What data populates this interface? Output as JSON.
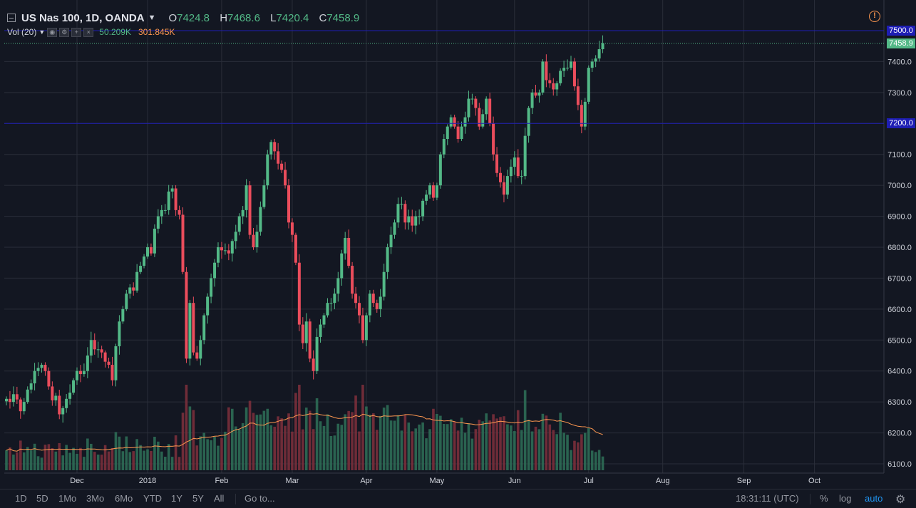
{
  "header": {
    "symbol": "US Nas 100, 1D, OANDA",
    "ohlc": [
      {
        "k": "O",
        "v": "7424.8"
      },
      {
        "k": "H",
        "v": "7468.6"
      },
      {
        "k": "L",
        "v": "7420.4"
      },
      {
        "k": "C",
        "v": "7458.9"
      }
    ]
  },
  "volume_indicator": {
    "label": "Vol (20)",
    "volume": "50.209K",
    "ma": "301.845K"
  },
  "price_labels": {
    "upper_line": "7500.0",
    "last": "7458.9",
    "lower_line": "7200.0"
  },
  "toolbar": {
    "timeframes": [
      "1D",
      "5D",
      "1Mo",
      "3Mo",
      "6Mo",
      "YTD",
      "1Y",
      "5Y",
      "All"
    ],
    "goto": "Go to...",
    "clock": "18:31:11 (UTC)",
    "percent": "%",
    "log": "log",
    "auto": "auto"
  },
  "colors": {
    "bg": "#131722",
    "grid": "#2a2e39",
    "up": "#53b987",
    "down": "#eb4d5c",
    "vol_ma": "#ff9850",
    "hline": "#1e1eb4",
    "text": "#d1d4dc"
  },
  "chart_data": {
    "type": "candlestick",
    "title": "US Nas 100, 1D, OANDA",
    "y_ticks": [
      6100,
      6200,
      6300,
      6400,
      6500,
      6600,
      6700,
      6800,
      6900,
      7000,
      7100,
      7200,
      7300,
      7400,
      7500
    ],
    "y_range": [
      6080,
      7540
    ],
    "x_labels": [
      {
        "label": "Dec",
        "index": 20
      },
      {
        "label": "2018",
        "index": 40
      },
      {
        "label": "Feb",
        "index": 61
      },
      {
        "label": "Mar",
        "index": 81
      },
      {
        "label": "Apr",
        "index": 102
      },
      {
        "label": "May",
        "index": 122
      },
      {
        "label": "Jun",
        "index": 144
      },
      {
        "label": "Jul",
        "index": 165
      },
      {
        "label": "Aug",
        "index": 186
      },
      {
        "label": "Sep",
        "index": 209
      },
      {
        "label": "Oct",
        "index": 229
      }
    ],
    "horizontal_lines": [
      7500,
      7200
    ],
    "last_price": 7458.9,
    "close": [
      6310,
      6300,
      6325,
      6308,
      6270,
      6300,
      6340,
      6360,
      6400,
      6410,
      6420,
      6400,
      6350,
      6305,
      6320,
      6260,
      6280,
      6310,
      6330,
      6370,
      6400,
      6390,
      6400,
      6450,
      6500,
      6470,
      6470,
      6460,
      6430,
      6420,
      6370,
      6480,
      6560,
      6600,
      6650,
      6670,
      6660,
      6720,
      6740,
      6770,
      6800,
      6780,
      6860,
      6900,
      6920,
      6920,
      6980,
      6990,
      6920,
      6905,
      6720,
      6440,
      6620,
      6460,
      6440,
      6500,
      6580,
      6640,
      6700,
      6750,
      6800,
      6790,
      6790,
      6780,
      6820,
      6850,
      6900,
      6920,
      7000,
      6840,
      6800,
      6850,
      6930,
      7000,
      7100,
      7140,
      7110,
      7070,
      7050,
      7000,
      6880,
      6840,
      6750,
      6550,
      6490,
      6560,
      6440,
      6400,
      6510,
      6550,
      6580,
      6620,
      6620,
      6650,
      6700,
      6780,
      6830,
      6740,
      6650,
      6620,
      6580,
      6500,
      6580,
      6650,
      6620,
      6600,
      6640,
      6720,
      6800,
      6840,
      6880,
      6940,
      6940,
      6880,
      6900,
      6870,
      6900,
      6900,
      6950,
      6970,
      7000,
      6960,
      7000,
      7100,
      7150,
      7190,
      7220,
      7190,
      7150,
      7190,
      7220,
      7280,
      7280,
      7250,
      7190,
      7230,
      7280,
      7200,
      7100,
      7040,
      7010,
      6970,
      7030,
      7060,
      7090,
      7030,
      7030,
      7160,
      7250,
      7300,
      7290,
      7300,
      7400,
      7340,
      7330,
      7310,
      7330,
      7370,
      7380,
      7380,
      7400,
      7320,
      7260,
      7190,
      7270,
      7380,
      7400,
      7410,
      7440,
      7459
    ]
  }
}
